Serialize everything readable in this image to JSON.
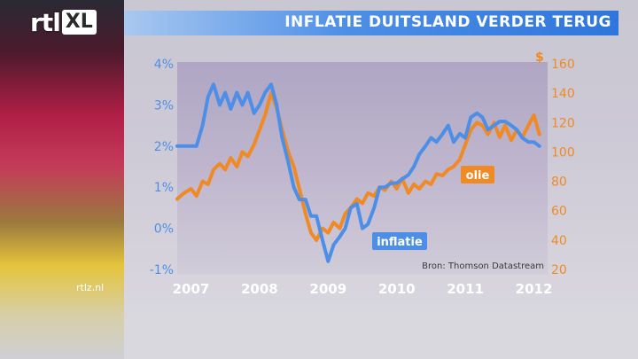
{
  "brand": {
    "logo_text": "rtl",
    "logo_badge": "XL",
    "site": "rtlz.nl"
  },
  "colors": {
    "inflation": "#4d8fe6",
    "oil": "#f08a24",
    "title_bar": "#3a80e0"
  },
  "chart_data": {
    "type": "line",
    "title": "INFLATIE DUITSLAND VERDER TERUG",
    "source": "Bron: Thomson Datastream",
    "x_axis": {
      "ticks": [
        "2007",
        "2008",
        "2009",
        "2010",
        "2011",
        "2012"
      ],
      "range": [
        2006.8,
        2012.2
      ]
    },
    "y_left": {
      "ticks": [
        "4%",
        "3%",
        "2%",
        "1%",
        "0%",
        "-1%"
      ],
      "range": [
        -1,
        4
      ]
    },
    "y_right": {
      "unit": "$",
      "ticks": [
        "160",
        "140",
        "120",
        "100",
        "80",
        "60",
        "40",
        "20"
      ],
      "range": [
        20,
        160
      ]
    },
    "grid": false,
    "series": [
      {
        "name": "inflatie",
        "axis": "left",
        "x": [
          2006.8,
          2006.9,
          2007.0,
          2007.08,
          2007.17,
          2007.25,
          2007.33,
          2007.42,
          2007.5,
          2007.58,
          2007.67,
          2007.75,
          2007.83,
          2007.92,
          2008.0,
          2008.08,
          2008.17,
          2008.25,
          2008.33,
          2008.42,
          2008.5,
          2008.58,
          2008.67,
          2008.75,
          2008.83,
          2008.92,
          2009.0,
          2009.08,
          2009.17,
          2009.25,
          2009.33,
          2009.42,
          2009.5,
          2009.58,
          2009.67,
          2009.75,
          2009.83,
          2009.92,
          2010.0,
          2010.08,
          2010.17,
          2010.25,
          2010.33,
          2010.42,
          2010.5,
          2010.58,
          2010.67,
          2010.75,
          2010.83,
          2010.92,
          2011.0,
          2011.08,
          2011.17,
          2011.25,
          2011.33,
          2011.42,
          2011.5,
          2011.58,
          2011.67,
          2011.75,
          2011.83,
          2011.92,
          2012.0,
          2012.08
        ],
        "values": [
          2.0,
          2.0,
          2.0,
          2.0,
          2.5,
          3.2,
          3.5,
          3.0,
          3.3,
          2.9,
          3.3,
          3.0,
          3.3,
          2.8,
          3.0,
          3.3,
          3.5,
          3.0,
          2.2,
          1.6,
          1.0,
          0.7,
          0.7,
          0.3,
          0.3,
          -0.3,
          -0.8,
          -0.4,
          -0.2,
          0.0,
          0.5,
          0.6,
          0.0,
          0.1,
          0.5,
          1.0,
          1.0,
          1.1,
          1.1,
          1.2,
          1.3,
          1.5,
          1.8,
          2.0,
          2.2,
          2.1,
          2.3,
          2.5,
          2.1,
          2.3,
          2.2,
          2.7,
          2.8,
          2.7,
          2.4,
          2.5,
          2.6,
          2.6,
          2.5,
          2.4,
          2.2,
          2.1,
          2.1,
          2.0
        ]
      },
      {
        "name": "olie",
        "axis": "right",
        "x": [
          2006.8,
          2006.9,
          2007.0,
          2007.08,
          2007.17,
          2007.25,
          2007.33,
          2007.42,
          2007.5,
          2007.58,
          2007.67,
          2007.75,
          2007.83,
          2007.92,
          2008.0,
          2008.08,
          2008.17,
          2008.25,
          2008.33,
          2008.42,
          2008.5,
          2008.58,
          2008.67,
          2008.75,
          2008.83,
          2008.92,
          2009.0,
          2009.08,
          2009.17,
          2009.25,
          2009.33,
          2009.42,
          2009.5,
          2009.58,
          2009.67,
          2009.75,
          2009.83,
          2009.92,
          2010.0,
          2010.08,
          2010.17,
          2010.25,
          2010.33,
          2010.42,
          2010.5,
          2010.58,
          2010.67,
          2010.75,
          2010.83,
          2010.92,
          2011.0,
          2011.08,
          2011.17,
          2011.25,
          2011.33,
          2011.42,
          2011.5,
          2011.58,
          2011.67,
          2011.75,
          2011.83,
          2011.92,
          2012.0,
          2012.08
        ],
        "values": [
          68,
          72,
          75,
          70,
          80,
          78,
          88,
          92,
          88,
          96,
          90,
          100,
          97,
          105,
          115,
          125,
          140,
          130,
          115,
          100,
          90,
          75,
          58,
          45,
          40,
          48,
          45,
          52,
          48,
          58,
          62,
          68,
          65,
          72,
          70,
          76,
          74,
          80,
          75,
          82,
          72,
          78,
          75,
          80,
          78,
          85,
          84,
          88,
          90,
          95,
          105,
          115,
          120,
          118,
          112,
          120,
          110,
          118,
          108,
          115,
          110,
          118,
          125,
          112
        ]
      }
    ]
  }
}
